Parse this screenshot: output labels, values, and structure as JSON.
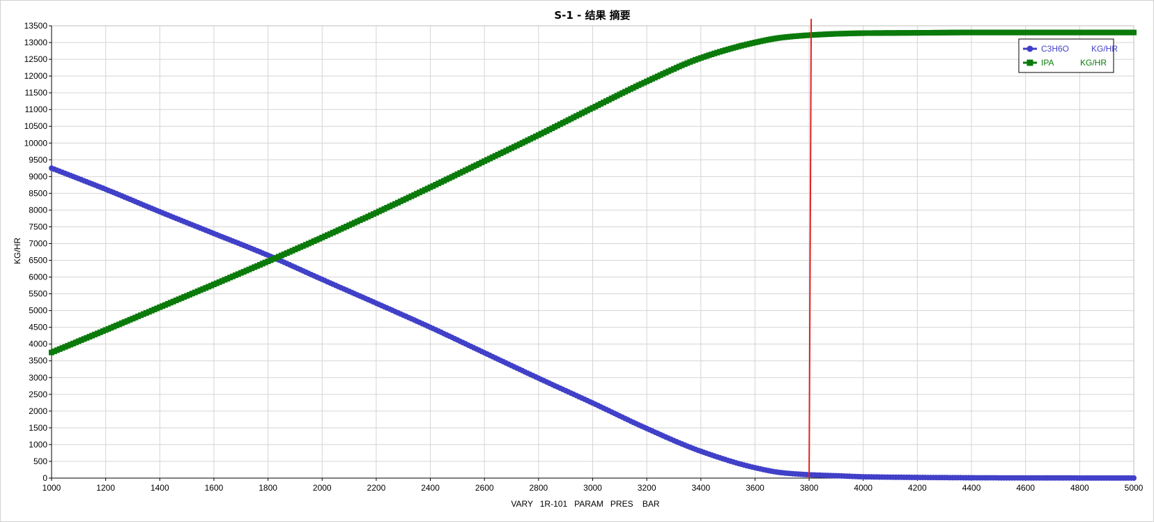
{
  "chart_data": {
    "type": "line",
    "title": "S-1 - 结果 摘要",
    "xlabel": "VARY   1R-101   PARAM   PRES    BAR",
    "ylabel": "KG/HR",
    "xlim": [
      1000,
      5000
    ],
    "ylim": [
      0,
      13500
    ],
    "xticks": [
      1000,
      1200,
      1400,
      1600,
      1800,
      2000,
      2200,
      2400,
      2600,
      2800,
      3000,
      3200,
      3400,
      3600,
      3800,
      4000,
      4200,
      4400,
      4600,
      4800,
      5000
    ],
    "yticks": [
      0,
      500,
      1000,
      1500,
      2000,
      2500,
      3000,
      3500,
      4000,
      4500,
      5000,
      5500,
      6000,
      6500,
      7000,
      7500,
      8000,
      8500,
      9000,
      9500,
      10000,
      10500,
      11000,
      11500,
      12000,
      12500,
      13000,
      13500
    ],
    "grid": true,
    "legend_position": "top-right",
    "vertical_marker_x": 3800,
    "vertical_marker_color": "#e02020",
    "x": [
      1000,
      1200,
      1400,
      1600,
      1800,
      2000,
      2200,
      2400,
      2600,
      2800,
      3000,
      3200,
      3400,
      3600,
      3700,
      3800,
      3900,
      4000,
      4200,
      4400,
      4600,
      4800,
      5000
    ],
    "series": [
      {
        "name": "C3H6O",
        "unit": "KG/HR",
        "color": "#4040c8",
        "marker": "circle",
        "values": [
          9250,
          8620,
          7950,
          7300,
          6650,
          5930,
          5220,
          4500,
          3740,
          2980,
          2240,
          1480,
          800,
          310,
          160,
          100,
          70,
          40,
          20,
          10,
          5,
          3,
          2
        ]
      },
      {
        "name": "IPA",
        "unit": "KG/HR",
        "color": "#0a7a0a",
        "marker": "square",
        "values": [
          3750,
          4420,
          5100,
          5780,
          6470,
          7180,
          7920,
          8680,
          9460,
          10240,
          11050,
          11840,
          12540,
          13000,
          13150,
          13220,
          13260,
          13280,
          13290,
          13300,
          13300,
          13300,
          13300
        ]
      }
    ]
  }
}
